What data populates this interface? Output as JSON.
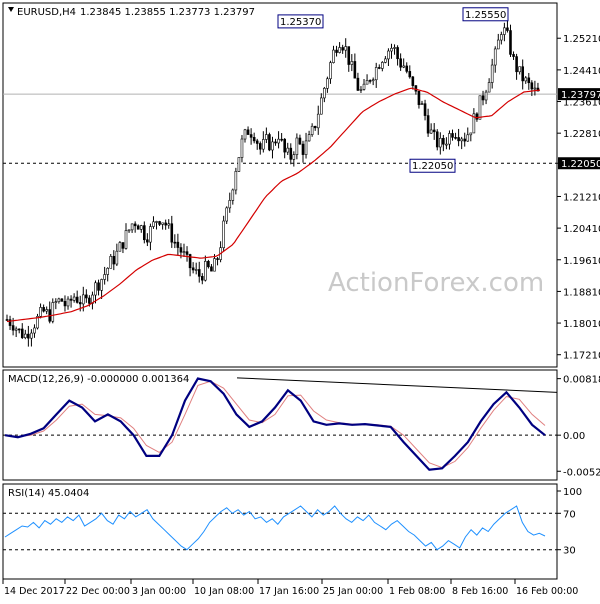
{
  "chart_data": {
    "type": "candlestick",
    "header": {
      "symbol": "EURUSD,H4",
      "ohlc": "1.23845 1.23855 1.23773 1.23797"
    },
    "watermark": "ActionForex.com",
    "x_ticks": [
      "14 Dec 2017",
      "22 Dec 00:00",
      "3 Jan 00:00",
      "10 Jan 08:00",
      "17 Jan 16:00",
      "25 Jan 00:00",
      "1 Feb 08:00",
      "8 Feb 16:00",
      "16 Feb 00:00"
    ],
    "price": {
      "ylim": [
        1.1695,
        1.2605
      ],
      "y_ticks": [
        "1.25210",
        "1.24410",
        "1.23610",
        "1.22810",
        "1.22050",
        "1.21210",
        "1.20410",
        "1.19610",
        "1.18810",
        "1.18010",
        "1.17210"
      ],
      "current_price_label": "1.23797",
      "current_price": 1.23797,
      "support_label": "1.22050",
      "support": 1.2205,
      "annotations": [
        {
          "text": "1.25370",
          "value": 1.2537
        },
        {
          "text": "1.25550",
          "value": 1.2555
        },
        {
          "text": "1.22050",
          "value": 1.2205
        }
      ],
      "close_path": [
        1.181,
        1.18,
        1.178,
        1.177,
        1.179,
        1.181,
        1.183,
        1.182,
        1.185,
        1.186,
        1.184,
        1.187,
        1.186,
        1.185,
        1.188,
        1.19,
        1.192,
        1.195,
        1.197,
        1.2,
        1.203,
        1.206,
        1.205,
        1.202,
        1.204,
        1.207,
        1.206,
        1.203,
        1.2,
        1.198,
        1.195,
        1.193,
        1.192,
        1.194,
        1.193,
        1.197,
        1.205,
        1.212,
        1.22,
        1.226,
        1.229,
        1.228,
        1.224,
        1.226,
        1.225,
        1.228,
        1.223,
        1.222,
        1.226,
        1.224,
        1.226,
        1.23,
        1.236,
        1.242,
        1.248,
        1.252,
        1.25,
        1.245,
        1.24,
        1.238,
        1.242,
        1.244,
        1.247,
        1.249,
        1.25,
        1.246,
        1.245,
        1.24,
        1.237,
        1.234,
        1.229,
        1.226,
        1.225,
        1.227,
        1.229,
        1.228,
        1.227,
        1.23,
        1.234,
        1.238,
        1.243,
        1.248,
        1.255,
        1.252,
        1.246,
        1.243,
        1.241,
        1.239,
        1.238
      ],
      "ma_path": [
        1.1805,
        1.181,
        1.1815,
        1.1822,
        1.183,
        1.1845,
        1.187,
        1.19,
        1.1935,
        1.196,
        1.1975,
        1.197,
        1.1965,
        1.197,
        1.2,
        1.206,
        1.212,
        1.216,
        1.218,
        1.221,
        1.2245,
        1.229,
        1.2335,
        1.236,
        1.238,
        1.2395,
        1.2385,
        1.236,
        1.234,
        1.232,
        1.2325,
        1.236,
        1.2385,
        1.239
      ]
    },
    "macd": {
      "label": "MACD(12,26,9) -0.000000 0.001364",
      "ylim": [
        -0.0062,
        0.009
      ],
      "y_ticks": [
        "0.008182",
        "0.00",
        "-0.005223"
      ],
      "main": [
        0.0,
        -0.0003,
        0.0002,
        0.001,
        0.003,
        0.005,
        0.004,
        0.002,
        0.003,
        0.002,
        0.0,
        -0.003,
        -0.003,
        0.0,
        0.005,
        0.0082,
        0.0078,
        0.006,
        0.003,
        0.0012,
        0.002,
        0.004,
        0.0065,
        0.005,
        0.002,
        0.0015,
        0.0017,
        0.0015,
        0.0016,
        0.0014,
        0.0012,
        -0.001,
        -0.003,
        -0.005,
        -0.0048,
        -0.003,
        -0.001,
        0.002,
        0.0045,
        0.0062,
        0.004,
        0.0015,
        0.0
      ],
      "signal": [
        0.0,
        -0.0002,
        0.0,
        0.0006,
        0.0022,
        0.0042,
        0.0045,
        0.003,
        0.0028,
        0.0025,
        0.001,
        -0.0015,
        -0.0025,
        -0.001,
        0.003,
        0.0072,
        0.0078,
        0.0068,
        0.0045,
        0.0022,
        0.0018,
        0.003,
        0.0057,
        0.0058,
        0.0035,
        0.0022,
        0.0018,
        0.0016,
        0.0016,
        0.0015,
        0.0013,
        0.0,
        -0.002,
        -0.004,
        -0.0047,
        -0.0038,
        -0.0018,
        0.001,
        0.0036,
        0.0056,
        0.0052,
        0.003,
        0.0014
      ],
      "trend_line": {
        "from": 0.0083,
        "to": 0.0062
      }
    },
    "rsi": {
      "label": "RSI(14) 45.0404",
      "ylim": [
        0,
        100
      ],
      "y_ticks": [
        "100",
        "70",
        "30",
        "0"
      ],
      "levels": [
        70,
        30
      ],
      "values": [
        44,
        48,
        52,
        56,
        55,
        60,
        54,
        62,
        58,
        64,
        60,
        66,
        62,
        68,
        56,
        60,
        64,
        70,
        62,
        58,
        68,
        64,
        72,
        66,
        70,
        74,
        64,
        58,
        52,
        46,
        40,
        34,
        30,
        36,
        42,
        50,
        60,
        66,
        72,
        76,
        70,
        74,
        68,
        72,
        64,
        66,
        60,
        64,
        58,
        66,
        70,
        74,
        78,
        72,
        66,
        74,
        68,
        72,
        78,
        70,
        64,
        60,
        66,
        62,
        68,
        60,
        56,
        52,
        58,
        62,
        56,
        50,
        46,
        40,
        34,
        38,
        30,
        34,
        40,
        36,
        32,
        44,
        52,
        46,
        54,
        50,
        58,
        64,
        70,
        74,
        78,
        60,
        50,
        46,
        48,
        45
      ]
    },
    "grid": false
  }
}
